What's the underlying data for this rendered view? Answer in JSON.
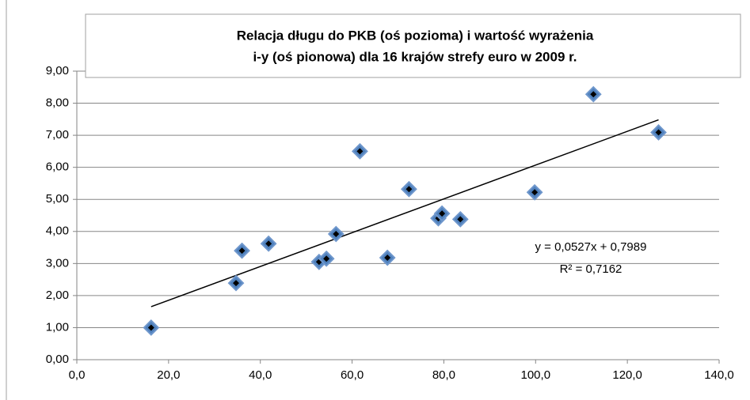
{
  "chart_data": {
    "type": "scatter",
    "title": [
      "Relacja długu do PKB (oś pozioma) i wartość wyrażenia",
      "i-y (oś pionowa) dla 16 krajów strefy euro w 2009 r."
    ],
    "x": [
      16.2,
      34.7,
      36.0,
      41.8,
      52.8,
      54.4,
      56.5,
      61.7,
      67.7,
      72.4,
      78.8,
      79.6,
      83.6,
      99.8,
      112.6,
      126.8
    ],
    "values": [
      1.0,
      2.39,
      3.4,
      3.62,
      3.05,
      3.15,
      3.92,
      6.5,
      3.18,
      5.32,
      4.41,
      4.56,
      4.38,
      5.22,
      8.28,
      7.09
    ],
    "color": "#4f81bd",
    "xlim": [
      0,
      140
    ],
    "xticks": [
      {
        "value": 0,
        "label": "0,0"
      },
      {
        "value": 20,
        "label": "20,0"
      },
      {
        "value": 40,
        "label": "40,0"
      },
      {
        "value": 60,
        "label": "60,0"
      },
      {
        "value": 80,
        "label": "80,0"
      },
      {
        "value": 100,
        "label": "100,0"
      },
      {
        "value": 120,
        "label": "120,0"
      },
      {
        "value": 140,
        "label": "140,0"
      }
    ],
    "ylim": [
      0,
      9
    ],
    "yticks": [
      {
        "value": 0,
        "label": "0,00"
      },
      {
        "value": 1,
        "label": "1,00"
      },
      {
        "value": 2,
        "label": "2,00"
      },
      {
        "value": 3,
        "label": "3,00"
      },
      {
        "value": 4,
        "label": "4,00"
      },
      {
        "value": 5,
        "label": "5,00"
      },
      {
        "value": 6,
        "label": "6,00"
      },
      {
        "value": 7,
        "label": "7,00"
      },
      {
        "value": 8,
        "label": "8,00"
      },
      {
        "value": 9,
        "label": "9,00"
      }
    ],
    "grid": true,
    "trendline": {
      "slope": 0.0527,
      "intercept": 0.7989,
      "equation": "y = 0,0527x + 0,7989",
      "r2": "R² = 0,7162"
    }
  }
}
